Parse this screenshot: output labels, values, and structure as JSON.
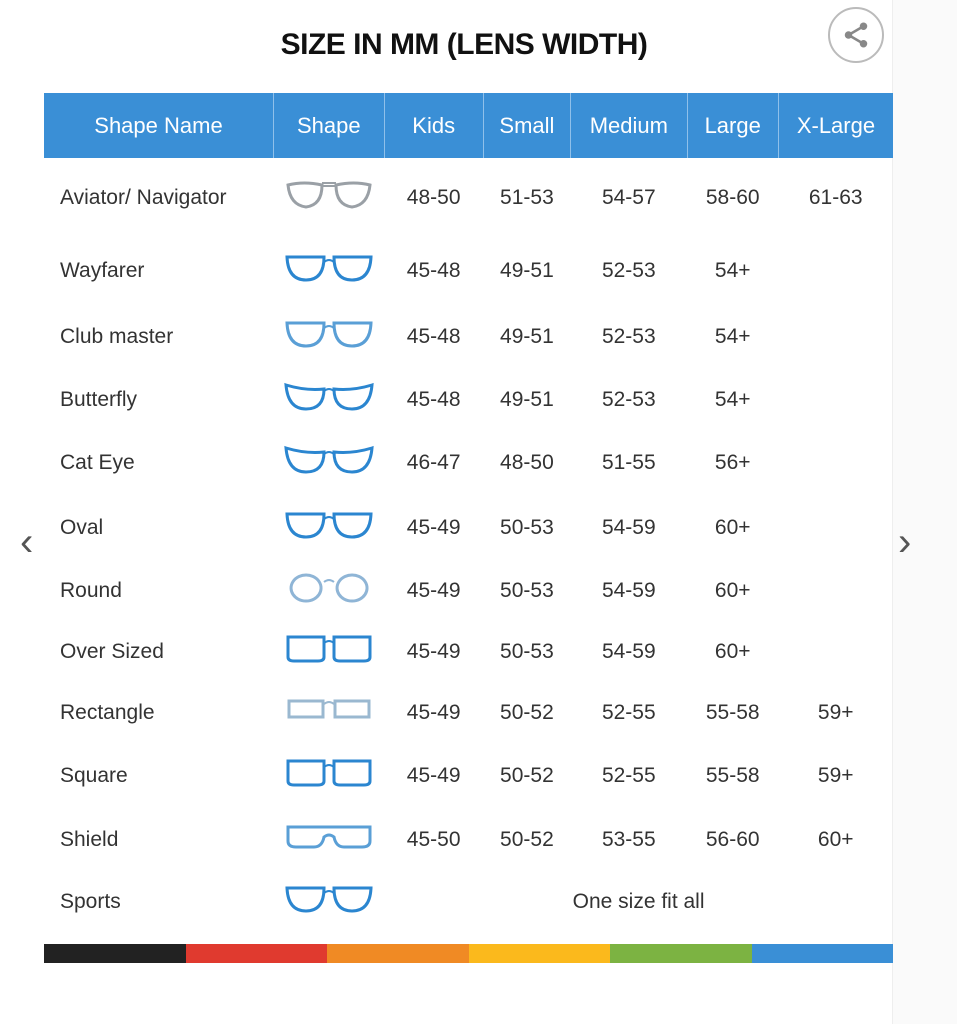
{
  "title": "SIZE IN MM (LENS WIDTH)",
  "share_icon": "share-icon",
  "nav": {
    "prev": "‹",
    "next": "›"
  },
  "columns": [
    "Shape Name",
    "Shape",
    "Kids",
    "Small",
    "Medium",
    "Large",
    "X-Large"
  ],
  "rows": [
    {
      "name": "Aviator/ Navigator",
      "icon": "aviator",
      "color": "#9aa0a6",
      "sizes": [
        "48-50",
        "51-53",
        "54-57",
        "58-60",
        "61-63"
      ]
    },
    {
      "name": "Wayfarer",
      "icon": "wayfarer",
      "color": "#2b86d0",
      "sizes": [
        "45-48",
        "49-51",
        "52-53",
        "54+",
        ""
      ]
    },
    {
      "name": "Club master",
      "icon": "clubmaster",
      "color": "#5a9fd6",
      "sizes": [
        "45-48",
        "49-51",
        "52-53",
        "54+",
        ""
      ]
    },
    {
      "name": "Butterfly",
      "icon": "butterfly",
      "color": "#2b86d0",
      "sizes": [
        "45-48",
        "49-51",
        "52-53",
        "54+",
        ""
      ]
    },
    {
      "name": "Cat Eye",
      "icon": "cateye",
      "color": "#2b86d0",
      "sizes": [
        "46-47",
        "48-50",
        "51-55",
        "56+",
        ""
      ]
    },
    {
      "name": "Oval",
      "icon": "oval",
      "color": "#2b86d0",
      "sizes": [
        "45-49",
        "50-53",
        "54-59",
        "60+",
        ""
      ]
    },
    {
      "name": "Round",
      "icon": "round",
      "color": "#8fb5d6",
      "sizes": [
        "45-49",
        "50-53",
        "54-59",
        "60+",
        ""
      ]
    },
    {
      "name": "Over Sized",
      "icon": "oversized",
      "color": "#2b86d0",
      "sizes": [
        "45-49",
        "50-53",
        "54-59",
        "60+",
        ""
      ]
    },
    {
      "name": "Rectangle",
      "icon": "rectangle",
      "color": "#9ab8d0",
      "sizes": [
        "45-49",
        "50-52",
        "52-55",
        "55-58",
        "59+"
      ]
    },
    {
      "name": "Square",
      "icon": "square",
      "color": "#2b86d0",
      "sizes": [
        "45-49",
        "50-52",
        "52-55",
        "55-58",
        "59+"
      ]
    },
    {
      "name": "Shield",
      "icon": "shield",
      "color": "#5a9fd6",
      "sizes": [
        "45-50",
        "50-52",
        "53-55",
        "56-60",
        "60+"
      ]
    },
    {
      "name": "Sports",
      "icon": "sports",
      "color": "#2b86d0",
      "span_text": "One size fit all"
    }
  ],
  "header_color": "#3a8fd6",
  "stripe_colors": [
    "#222222",
    "#e03a2f",
    "#f08a24",
    "#fbb91c",
    "#7cb342",
    "#3a8fd6"
  ]
}
